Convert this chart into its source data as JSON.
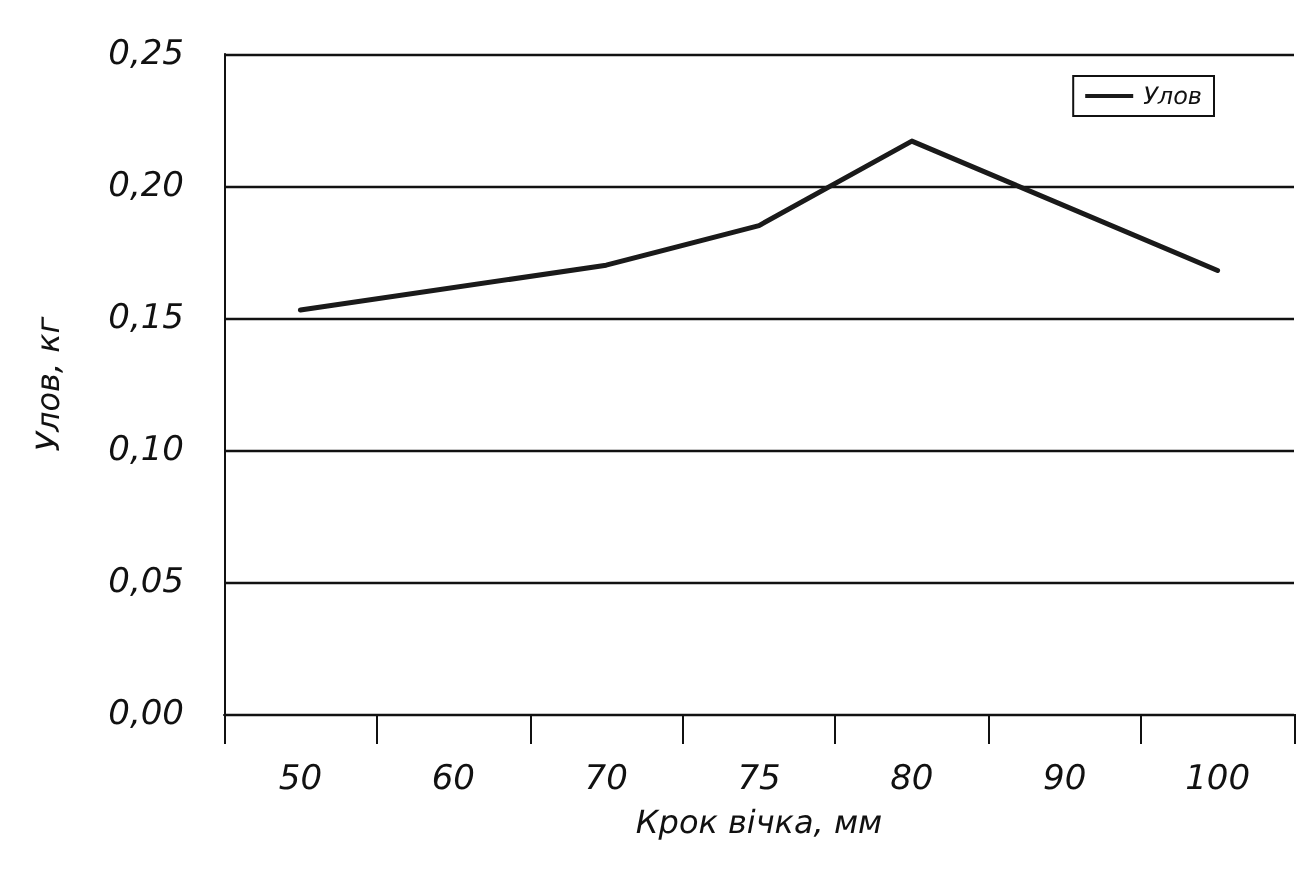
{
  "chart_data": {
    "type": "line",
    "xlabel": "Крок вічка, мм",
    "ylabel": "Улов, кг",
    "categories": [
      "50",
      "60",
      "70",
      "75",
      "80",
      "90",
      "100"
    ],
    "series": [
      {
        "name": "Улов",
        "color": "#1a1a1a",
        "values": [
          0.153,
          null,
          0.17,
          0.185,
          0.217,
          null,
          0.168
        ]
      }
    ],
    "ylim": [
      0,
      0.25
    ],
    "yticks": [
      {
        "value": 0,
        "label": "0,00"
      },
      {
        "value": 0.05,
        "label": "0,05"
      },
      {
        "value": 0.1,
        "label": "0,10"
      },
      {
        "value": 0.15,
        "label": "0,15"
      },
      {
        "value": 0.2,
        "label": "0,20"
      },
      {
        "value": 0.25,
        "label": "0,25"
      }
    ],
    "grid": "y",
    "legend": "top right",
    "marker": "none",
    "line_style": "solid"
  }
}
